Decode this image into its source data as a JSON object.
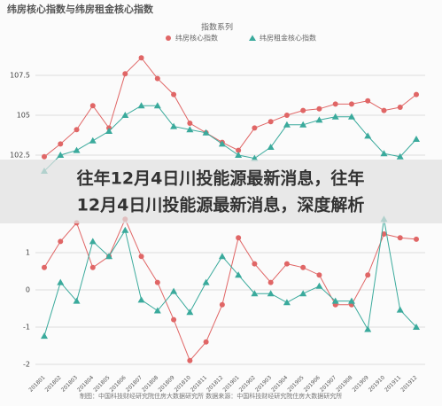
{
  "header": {
    "title": "纬房核心指数与纬房租金核心指数",
    "subtitle": "指数系列"
  },
  "overlay": {
    "lines": [
      "往年12月4日川投能源最新消息，往年",
      "12月4日川投能源最新消息，深度解析"
    ]
  },
  "footer": {
    "source": "制图：中国科技财经研究院住房大数据研究所  数据来源：中国科技财经研究院住房大数据研究所"
  },
  "chart_data": [
    {
      "type": "line",
      "ylim": [
        101.5,
        110
      ],
      "yticks": [
        102.5,
        105,
        107.5
      ],
      "grid": true,
      "series": [
        {
          "name": "纬房核心指数",
          "color": "#e06666",
          "marker": "circle",
          "values": [
            102.4,
            103.2,
            104.1,
            105.6,
            104.2,
            107.6,
            108.6,
            107.3,
            106.3,
            104.5,
            103.9,
            103.3,
            102.8,
            104.2,
            104.6,
            105.0,
            105.3,
            105.4,
            105.7,
            105.7,
            105.9,
            105.3,
            105.5,
            106.3
          ]
        },
        {
          "name": "纬房租金核心指数",
          "color": "#3aaa9c",
          "marker": "triangle",
          "values": [
            101.5,
            102.5,
            102.8,
            103.4,
            104.0,
            105.0,
            105.6,
            105.6,
            104.3,
            104.1,
            103.9,
            103.2,
            102.5,
            102.3,
            103.0,
            104.4,
            104.4,
            104.7,
            104.9,
            104.9,
            103.7,
            102.6,
            102.4,
            103.5
          ]
        }
      ]
    },
    {
      "type": "line",
      "ylim": [
        -2,
        2
      ],
      "yticks": [
        -2,
        -1,
        0,
        1
      ],
      "grid": true,
      "categories": [
        "201801",
        "201802",
        "201803",
        "201804",
        "201805",
        "201806",
        "201807",
        "201808",
        "201809",
        "201810",
        "201811",
        "201812",
        "201901",
        "201902",
        "201903",
        "201904",
        "201905",
        "201906",
        "201907",
        "201908",
        "201909",
        "201910",
        "201911",
        "201912"
      ],
      "series": [
        {
          "name": "纬房核心指数",
          "color": "#e06666",
          "marker": "circle",
          "values": [
            0.6,
            1.3,
            1.8,
            0.6,
            0.9,
            1.9,
            0.9,
            0.2,
            -0.8,
            -1.9,
            -1.4,
            -0.4,
            1.4,
            0.7,
            0.2,
            0.7,
            0.6,
            0.4,
            -0.4,
            -0.4,
            0.4,
            1.5,
            1.4,
            1.36
          ]
        },
        {
          "name": "纬房租金核心指数",
          "color": "#3aaa9c",
          "marker": "triangle",
          "values": [
            -1.24,
            0.2,
            -0.3,
            1.3,
            0.9,
            1.6,
            -0.27,
            -0.56,
            -0.04,
            -0.6,
            0.2,
            0.9,
            0.4,
            -0.1,
            -0.1,
            -0.34,
            -0.1,
            0.1,
            -0.3,
            -0.3,
            -1.06,
            1.9,
            -0.54,
            -1.0
          ]
        }
      ]
    }
  ]
}
